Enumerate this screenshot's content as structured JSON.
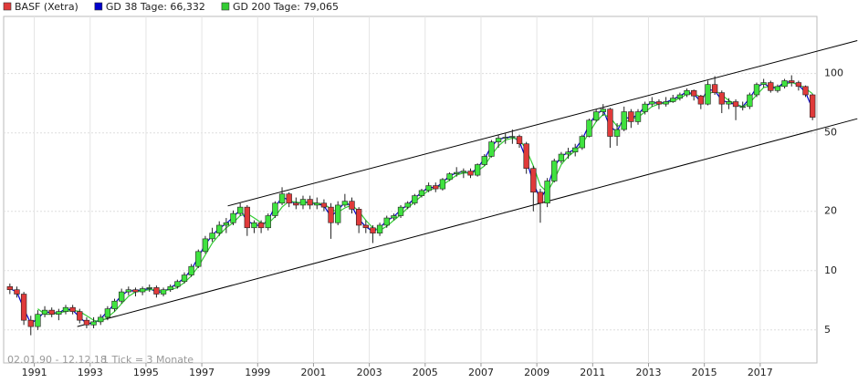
{
  "chart_data": {
    "type": "candlestick",
    "log_scale": true,
    "grid": true,
    "xlim": [
      1990,
      2019
    ],
    "ylim": [
      3.4,
      195
    ],
    "xticks": [
      1991,
      1993,
      1995,
      1997,
      1999,
      2001,
      2003,
      2005,
      2007,
      2009,
      2011,
      2013,
      2015,
      2017
    ],
    "yticks": [
      5,
      10,
      20,
      50,
      100
    ],
    "date_range": "02.01.90 - 12.12.18",
    "tick_note": "1 Tick = 3 Monate",
    "x": [
      1990.125,
      1990.375,
      1990.625,
      1990.875,
      1991.125,
      1991.375,
      1991.625,
      1991.875,
      1992.125,
      1992.375,
      1992.625,
      1992.875,
      1993.125,
      1993.375,
      1993.625,
      1993.875,
      1994.125,
      1994.375,
      1994.625,
      1994.875,
      1995.125,
      1995.375,
      1995.625,
      1995.875,
      1996.125,
      1996.375,
      1996.625,
      1996.875,
      1997.125,
      1997.375,
      1997.625,
      1997.875,
      1998.125,
      1998.375,
      1998.625,
      1998.875,
      1999.125,
      1999.375,
      1999.625,
      1999.875,
      2000.125,
      2000.375,
      2000.625,
      2000.875,
      2001.125,
      2001.375,
      2001.625,
      2001.875,
      2002.125,
      2002.375,
      2002.625,
      2002.875,
      2003.125,
      2003.375,
      2003.625,
      2003.875,
      2004.125,
      2004.375,
      2004.625,
      2004.875,
      2005.125,
      2005.375,
      2005.625,
      2005.875,
      2006.125,
      2006.375,
      2006.625,
      2006.875,
      2007.125,
      2007.375,
      2007.625,
      2007.875,
      2008.125,
      2008.375,
      2008.625,
      2008.875,
      2009.125,
      2009.375,
      2009.625,
      2009.875,
      2010.125,
      2010.375,
      2010.625,
      2010.875,
      2011.125,
      2011.375,
      2011.625,
      2011.875,
      2012.125,
      2012.375,
      2012.625,
      2012.875,
      2013.125,
      2013.375,
      2013.625,
      2013.875,
      2014.125,
      2014.375,
      2014.625,
      2014.875,
      2015.125,
      2015.375,
      2015.625,
      2015.875,
      2016.125,
      2016.375,
      2016.625,
      2016.875,
      2017.125,
      2017.375,
      2017.625,
      2017.875,
      2018.125,
      2018.375,
      2018.625,
      2018.875
    ],
    "series": [
      {
        "name": "BASF (Xetra)",
        "color": "#e03a3a",
        "up_color": "#3fe33f",
        "down_color": "#e03a3a",
        "open": [
          8.3,
          8.0,
          7.6,
          5.6,
          5.2,
          6.0,
          6.3,
          6.0,
          6.2,
          6.5,
          6.2,
          5.6,
          5.3,
          5.5,
          5.8,
          6.4,
          7.0,
          7.8,
          8.0,
          7.8,
          8.1,
          8.2,
          7.6,
          8.0,
          8.3,
          8.8,
          9.5,
          10.5,
          12.5,
          14.5,
          15.5,
          17.0,
          17.5,
          19.5,
          21.0,
          16.5,
          17.5,
          16.5,
          19.0,
          22.0,
          24.5,
          22.0,
          21.5,
          23.0,
          21.5,
          22.0,
          21.0,
          17.5,
          21.5,
          22.5,
          20.5,
          17.0,
          16.5,
          15.5,
          17.0,
          18.5,
          19.0,
          21.0,
          22.0,
          24.0,
          25.5,
          27.0,
          26.0,
          29.0,
          31.0,
          31.5,
          32.0,
          30.5,
          34.5,
          38.0,
          45.0,
          47.0,
          47.5,
          48.0,
          44.0,
          33.0,
          25.0,
          22.0,
          28.5,
          36.0,
          39.0,
          40.0,
          42.0,
          48.0,
          58.0,
          64.0,
          66.0,
          48.0,
          52.0,
          64.0,
          57.0,
          64.0,
          70.0,
          72.0,
          70.0,
          72.0,
          75.0,
          78.0,
          82.0,
          77.0,
          70.0,
          88.0,
          80.0,
          70.0,
          72.0,
          68.0,
          68.0,
          78.0,
          88.0,
          90.0,
          82.0,
          86.0,
          92.0,
          90.0,
          86.0,
          78.0
        ],
        "high": [
          8.6,
          8.3,
          7.8,
          5.9,
          6.3,
          6.6,
          6.5,
          6.4,
          6.7,
          6.7,
          6.4,
          5.8,
          5.8,
          6.0,
          6.6,
          7.2,
          8.1,
          8.3,
          8.2,
          8.3,
          8.5,
          8.4,
          8.2,
          8.5,
          9.0,
          9.8,
          10.8,
          12.8,
          15.0,
          16.5,
          17.8,
          18.5,
          20.2,
          22.0,
          21.5,
          18.0,
          18.0,
          19.5,
          22.5,
          26.5,
          25.0,
          23.5,
          24.0,
          24.0,
          23.5,
          23.0,
          22.0,
          22.5,
          24.5,
          23.5,
          21.0,
          18.0,
          17.0,
          17.5,
          19.0,
          19.5,
          21.5,
          22.5,
          24.5,
          26.0,
          28.0,
          28.0,
          29.5,
          31.5,
          33.5,
          33.0,
          33.0,
          35.0,
          39.0,
          46.0,
          49.0,
          50.0,
          52.0,
          49.0,
          45.0,
          34.0,
          26.0,
          29.5,
          37.0,
          40.0,
          42.0,
          44.0,
          49.0,
          59.0,
          66.0,
          70.0,
          67.0,
          56.0,
          68.0,
          66.0,
          66.0,
          72.0,
          76.0,
          74.0,
          76.0,
          78.0,
          80.0,
          84.0,
          83.0,
          78.0,
          92.0,
          97.0,
          82.0,
          75.0,
          74.0,
          72.0,
          80.0,
          90.0,
          94.0,
          92.0,
          88.0,
          94.0,
          98.0,
          92.0,
          87.0,
          79.0
        ],
        "low": [
          7.6,
          7.3,
          5.3,
          4.7,
          5.0,
          5.8,
          5.8,
          5.6,
          6.0,
          6.0,
          5.4,
          5.1,
          5.1,
          5.3,
          5.6,
          6.2,
          6.8,
          7.5,
          7.4,
          7.5,
          7.8,
          7.3,
          7.4,
          7.8,
          8.1,
          8.6,
          9.3,
          10.3,
          12.2,
          14.0,
          15.0,
          15.5,
          17.0,
          19.0,
          15.0,
          15.5,
          15.5,
          16.0,
          18.5,
          21.5,
          21.0,
          20.5,
          20.5,
          20.5,
          20.5,
          20.0,
          14.5,
          17.0,
          21.0,
          19.5,
          15.5,
          15.5,
          13.8,
          15.0,
          16.5,
          18.0,
          18.5,
          20.5,
          21.5,
          23.5,
          25.0,
          25.0,
          25.5,
          28.5,
          30.0,
          29.5,
          29.5,
          30.0,
          34.0,
          37.5,
          42.0,
          44.0,
          44.0,
          42.0,
          31.0,
          20.0,
          17.5,
          21.0,
          28.0,
          35.0,
          37.0,
          38.0,
          41.0,
          47.5,
          57.0,
          61.0,
          42.0,
          43.0,
          51.0,
          53.0,
          55.0,
          62.0,
          68.0,
          66.0,
          68.0,
          71.0,
          73.0,
          76.0,
          73.0,
          66.0,
          69.0,
          78.0,
          63.0,
          66.0,
          58.0,
          65.0,
          66.0,
          76.0,
          85.0,
          80.0,
          80.0,
          84.0,
          86.0,
          82.0,
          76.0,
          58.0
        ],
        "close": [
          8.0,
          7.6,
          5.6,
          5.2,
          6.0,
          6.3,
          6.0,
          6.2,
          6.5,
          6.2,
          5.6,
          5.3,
          5.5,
          5.8,
          6.4,
          7.0,
          7.8,
          8.0,
          7.8,
          8.1,
          8.2,
          7.6,
          8.0,
          8.3,
          8.8,
          9.5,
          10.5,
          12.5,
          14.5,
          15.5,
          17.0,
          17.5,
          19.5,
          21.0,
          16.5,
          17.5,
          16.5,
          19.0,
          22.0,
          24.5,
          22.0,
          21.5,
          23.0,
          21.5,
          22.0,
          21.0,
          17.5,
          21.5,
          22.5,
          20.5,
          17.0,
          16.5,
          15.5,
          17.0,
          18.5,
          19.0,
          21.0,
          22.0,
          24.0,
          25.5,
          27.0,
          26.0,
          29.0,
          31.0,
          31.5,
          32.0,
          30.5,
          34.5,
          38.0,
          45.0,
          47.0,
          47.5,
          48.0,
          44.0,
          33.0,
          25.0,
          22.0,
          28.5,
          36.0,
          39.0,
          40.0,
          42.0,
          48.0,
          58.0,
          64.0,
          66.0,
          48.0,
          52.0,
          64.0,
          57.0,
          64.0,
          70.0,
          72.0,
          70.0,
          72.0,
          75.0,
          78.0,
          82.0,
          77.0,
          70.0,
          88.0,
          80.0,
          70.0,
          72.0,
          68.0,
          68.0,
          78.0,
          88.0,
          90.0,
          82.0,
          86.0,
          92.0,
          90.0,
          86.0,
          78.0,
          60.0
        ]
      },
      {
        "name": "GD 38 Tage: 66,332",
        "color": "#0000cc",
        "values": [
          8.1,
          7.8,
          6.4,
          5.4,
          5.7,
          6.2,
          6.1,
          6.1,
          6.4,
          6.3,
          5.8,
          5.4,
          5.4,
          5.7,
          6.2,
          6.8,
          7.5,
          7.9,
          7.9,
          8.0,
          8.1,
          7.8,
          7.8,
          8.2,
          8.6,
          9.2,
          10.1,
          11.7,
          13.6,
          15.1,
          16.4,
          17.3,
          18.7,
          20.4,
          17.8,
          17.2,
          16.8,
          18.1,
          21.0,
          23.6,
          22.8,
          21.7,
          22.5,
          22.0,
          21.9,
          21.3,
          18.8,
          20.3,
          22.2,
          21.2,
          18.2,
          16.7,
          15.8,
          16.5,
          17.9,
          18.8,
          20.3,
          21.6,
          23.3,
          25.0,
          26.5,
          26.3,
          28.0,
          30.3,
          31.3,
          31.8,
          31.0,
          33.3,
          36.9,
          42.8,
          46.3,
          47.3,
          47.8,
          45.3,
          36.5,
          27.8,
          23.0,
          26.5,
          33.6,
          38.1,
          39.7,
          41.4,
          46.2,
          55.0,
          62.2,
          65.4,
          53.5,
          51.0,
          60.0,
          59.1,
          62.0,
          68.2,
          71.4,
          70.6,
          71.5,
          74.1,
          77.1,
          80.8,
          78.5,
          72.1,
          82.9,
          82.0,
          73.0,
          71.5,
          69.3,
          68.0,
          75.0,
          85.0,
          89.4,
          84.4,
          85.0,
          90.4,
          90.6,
          87.2,
          80.4,
          66.0
        ]
      },
      {
        "name": "GD 200 Tage: 79,065",
        "color": "#33cc33",
        "values": [
          null,
          null,
          null,
          null,
          6.4,
          6.0,
          6.0,
          6.1,
          6.2,
          6.3,
          6.2,
          5.9,
          5.6,
          5.5,
          5.8,
          6.2,
          6.8,
          7.4,
          7.8,
          7.9,
          8.0,
          8.0,
          7.9,
          8.0,
          8.2,
          8.7,
          9.4,
          10.5,
          12.0,
          13.8,
          15.2,
          16.5,
          17.5,
          19.0,
          19.5,
          18.5,
          17.5,
          17.3,
          18.8,
          21.0,
          22.5,
          22.3,
          22.0,
          22.2,
          22.0,
          21.8,
          20.5,
          19.8,
          20.8,
          21.5,
          20.0,
          18.0,
          16.5,
          16.0,
          16.8,
          18.0,
          19.2,
          20.8,
          22.3,
          24.0,
          25.5,
          26.3,
          27.2,
          28.8,
          30.5,
          31.3,
          31.3,
          32.0,
          34.0,
          38.5,
          43.0,
          46.0,
          47.0,
          46.5,
          41.0,
          34.0,
          27.0,
          25.0,
          29.0,
          34.5,
          38.0,
          40.5,
          44.0,
          50.0,
          57.0,
          62.0,
          60.0,
          54.0,
          56.0,
          59.0,
          60.0,
          64.0,
          68.0,
          70.0,
          71.0,
          72.5,
          75.0,
          78.5,
          79.0,
          76.0,
          78.0,
          82.0,
          78.0,
          73.0,
          70.0,
          68.0,
          71.0,
          78.0,
          85.0,
          86.0,
          85.0,
          88.0,
          90.0,
          88.0,
          84.0,
          79.0
        ]
      }
    ],
    "trendlines": [
      {
        "x": [
          1992.54,
          2020.48
        ],
        "values": [
          5.2,
          59
        ]
      },
      {
        "x": [
          1997.93,
          2020.48
        ],
        "values": [
          21.3,
          147
        ]
      }
    ]
  }
}
